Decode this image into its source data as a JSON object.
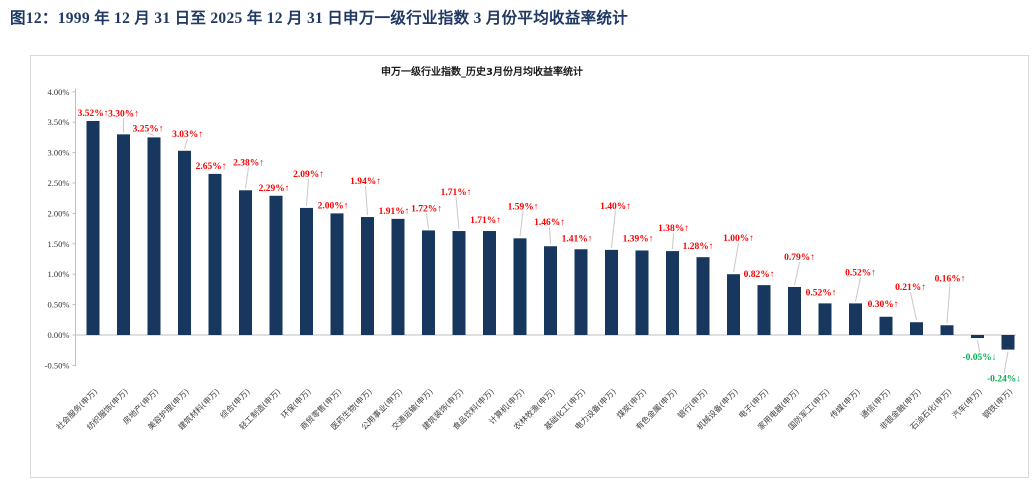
{
  "page": {
    "title": "图12：1999 年 12 月 31 日至 2025 年 12 月 31 日申万一级行业指数 3 月份平均收益率统计",
    "title_color": "#1F3864"
  },
  "chart_data": {
    "type": "bar",
    "title": "申万一级行业指数_历史3月份月均收益率统计",
    "xlabel": "",
    "ylabel": "",
    "ylim": [
      -0.5,
      4.0
    ],
    "ytick_step": 0.5,
    "yticks": [
      "4.00%",
      "3.50%",
      "3.00%",
      "2.50%",
      "2.00%",
      "1.50%",
      "1.00%",
      "0.50%",
      "0.00%",
      "-0.50%"
    ],
    "grid": false,
    "legend": false,
    "categories": [
      "社会服务(申万)",
      "纺织服饰(申万)",
      "房地产(申万)",
      "美容护理(申万)",
      "建筑材料(申万)",
      "综合(申万)",
      "轻工制造(申万)",
      "环保(申万)",
      "商贸零售(申万)",
      "医药生物(申万)",
      "公用事业(申万)",
      "交通运输(申万)",
      "建筑装饰(申万)",
      "食品饮料(申万)",
      "计算机(申万)",
      "农林牧渔(申万)",
      "基础化工(申万)",
      "电力设备(申万)",
      "煤炭(申万)",
      "有色金属(申万)",
      "银行(申万)",
      "机械设备(申万)",
      "电子(申万)",
      "家用电器(申万)",
      "国防军工(申万)",
      "传媒(申万)",
      "通信(申万)",
      "非银金融(申万)",
      "石油石化(申万)",
      "汽车(申万)",
      "钢铁(申万)"
    ],
    "values": [
      3.52,
      3.3,
      3.25,
      3.03,
      2.65,
      2.38,
      2.29,
      2.09,
      2.0,
      1.94,
      1.91,
      1.72,
      1.71,
      1.71,
      1.59,
      1.46,
      1.41,
      1.4,
      1.39,
      1.38,
      1.28,
      1.0,
      0.82,
      0.79,
      0.52,
      0.52,
      0.3,
      0.21,
      0.16,
      -0.05,
      -0.24
    ],
    "point_labels": [
      "3.52%↑",
      "3.30%↑",
      "3.25%↑",
      "3.03%↑",
      "2.65%↑",
      "2.38%↑",
      "2.29%↑",
      "2.09%↑",
      "2.00%↑",
      "1.94%↑",
      "1.91%↑",
      "1.72%↑",
      "1.71%↑",
      "1.71%↑",
      "1.59%↑",
      "1.46%↑",
      "1.41%↑",
      "1.40%↑",
      "1.39%↑",
      "1.38%↑",
      "1.28%↑",
      "1.00%↑",
      "0.82%↑",
      "0.79%↑",
      "0.52%↑",
      "0.52%↑",
      "0.30%↑",
      "0.21%↑",
      "0.16%↑",
      "-0.05%↓",
      "-0.24%↓"
    ],
    "label_layout": {
      "dx": [
        0,
        0,
        -6,
        3,
        -4,
        3,
        -2,
        2,
        -4,
        -2,
        -4,
        -2,
        -3,
        -4,
        3,
        -1,
        -4,
        4,
        -4,
        1,
        -5,
        5,
        -5,
        5,
        -4,
        5,
        -3,
        -6,
        3,
        2,
        -4
      ],
      "dy": [
        -5,
        -18,
        -6,
        -14,
        -5,
        -25,
        -5,
        -31,
        -5,
        -33,
        -5,
        -19,
        -36,
        -8,
        -29,
        -21,
        -8,
        -41,
        -9,
        -20,
        -8,
        -33,
        -8,
        -27,
        -8,
        -28,
        -10,
        -32,
        -44,
        22,
        32
      ],
      "leader": [
        false,
        true,
        true,
        true,
        false,
        true,
        false,
        true,
        false,
        true,
        false,
        true,
        true,
        false,
        true,
        true,
        false,
        true,
        false,
        true,
        false,
        true,
        false,
        true,
        false,
        true,
        false,
        true,
        true,
        true,
        true
      ]
    },
    "colors": {
      "bar": "#17375E",
      "positive_label": "#FF0000",
      "negative_label": "#00B050",
      "axis": "#BFBFBF",
      "leader": "#C8C8C8",
      "tick_text": "#333333",
      "category_text": "#404040",
      "title_text": "#1A1A1A"
    }
  }
}
